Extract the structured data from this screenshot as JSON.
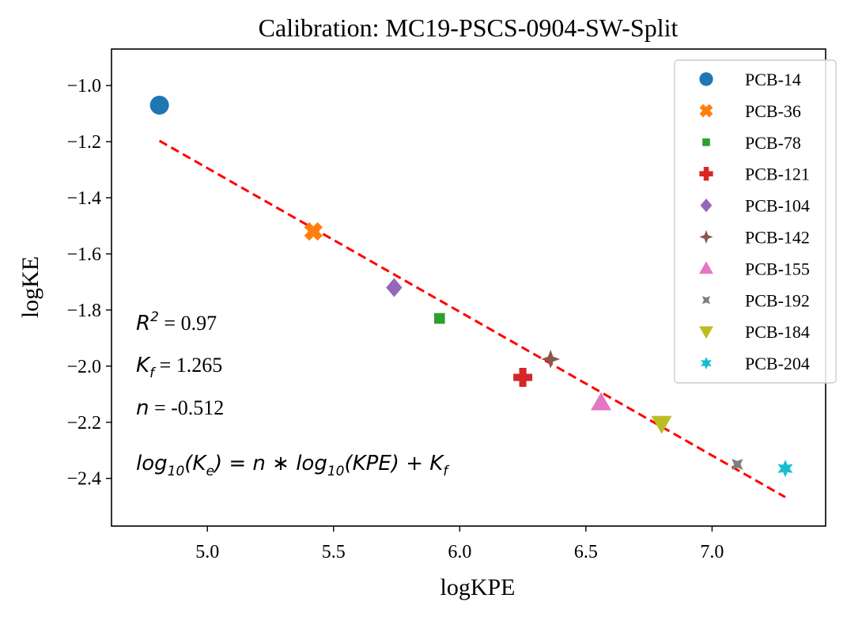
{
  "chart_data": {
    "type": "scatter",
    "title": "Calibration: MC19-PSCS-0904-SW-Split",
    "xlabel": "logKPE",
    "ylabel": "logKE",
    "xlim": [
      4.62,
      7.45
    ],
    "ylim": [
      -2.57,
      -0.87
    ],
    "xticks": [
      5.0,
      5.5,
      6.0,
      6.5,
      7.0
    ],
    "xtick_labels": [
      "5.0",
      "5.5",
      "6.0",
      "6.5",
      "7.0"
    ],
    "yticks": [
      -1.0,
      -1.2,
      -1.4,
      -1.6,
      -1.8,
      -2.0,
      -2.2,
      -2.4
    ],
    "ytick_labels": [
      "−1.0",
      "−1.2",
      "−1.4",
      "−1.6",
      "−1.8",
      "−2.0",
      "−2.2",
      "−2.4"
    ],
    "grid": false,
    "legend_position": "top-right",
    "series": [
      {
        "name": "PCB-14",
        "x": 4.81,
        "y": -1.07,
        "color": "#1f77b4",
        "marker": "circle"
      },
      {
        "name": "PCB-36",
        "x": 5.42,
        "y": -1.52,
        "color": "#ff7f0e",
        "marker": "x"
      },
      {
        "name": "PCB-78",
        "x": 5.92,
        "y": -1.83,
        "color": "#2ca02c",
        "marker": "square"
      },
      {
        "name": "PCB-121",
        "x": 6.25,
        "y": -2.04,
        "color": "#d62728",
        "marker": "plus"
      },
      {
        "name": "PCB-104",
        "x": 5.74,
        "y": -1.72,
        "color": "#9467bd",
        "marker": "diamond"
      },
      {
        "name": "PCB-142",
        "x": 6.36,
        "y": -1.975,
        "color": "#8c564b",
        "marker": "star4"
      },
      {
        "name": "PCB-155",
        "x": 6.56,
        "y": -2.13,
        "color": "#e377c2",
        "marker": "triangle-up"
      },
      {
        "name": "PCB-192",
        "x": 7.1,
        "y": -2.35,
        "color": "#7f7f7f",
        "marker": "star4-thin"
      },
      {
        "name": "PCB-184",
        "x": 6.8,
        "y": -2.205,
        "color": "#bcbd22",
        "marker": "triangle-down"
      },
      {
        "name": "PCB-204",
        "x": 7.29,
        "y": -2.365,
        "color": "#17becf",
        "marker": "star6"
      }
    ],
    "fit_line": {
      "color": "#ff0000",
      "style": "dashed",
      "x": [
        4.81,
        7.29
      ],
      "y": [
        -1.197,
        -2.467
      ]
    },
    "annotations": {
      "r2_label": "R",
      "r2_sup": "2",
      "r2_value": " = 0.97",
      "kf_label": "K",
      "kf_sub": "f",
      "kf_value": " = 1.265",
      "n_label": "n",
      "n_value": " = -0.512",
      "equation": "log₁₀(Kₑ) = n∗log₁₀(KPE) + K_f"
    }
  }
}
